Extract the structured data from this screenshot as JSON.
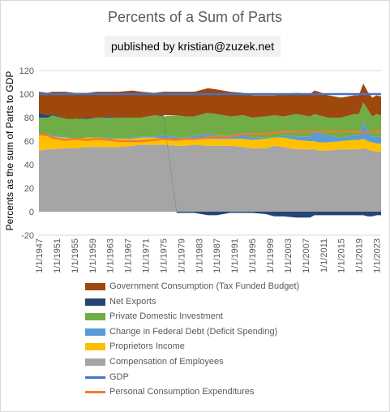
{
  "chart_data": {
    "type": "area",
    "title": "Percents of a Sum of Parts",
    "publisher": "published by kristian@zuzek.net",
    "ylabel": "Percents as the sum of Parts to GDP",
    "xlabel": "",
    "ylim": [
      -20,
      120
    ],
    "yticks": [
      -20,
      0,
      20,
      40,
      60,
      80,
      100,
      120
    ],
    "x_start_year": 1947,
    "x_end_year": 2024,
    "xtick_labels": [
      "1/1/1947",
      "1/1/1951",
      "1/1/1955",
      "1/1/1959",
      "1/1/1963",
      "1/1/1967",
      "1/1/1971",
      "1/1/1975",
      "1/1/1979",
      "1/1/1983",
      "1/1/1987",
      "1/1/1991",
      "1/1/1995",
      "1/1/1999",
      "1/1/2003",
      "1/1/2007",
      "1/1/2011",
      "1/1/2015",
      "1/1/2019",
      "1/1/2023"
    ],
    "xtick_years": [
      1947,
      1951,
      1955,
      1959,
      1963,
      1967,
      1971,
      1975,
      1979,
      1983,
      1987,
      1991,
      1995,
      1999,
      2003,
      2007,
      2011,
      2015,
      2019,
      2023
    ],
    "grid": true,
    "legend_position": "bottom",
    "sample_years": [
      1947,
      1949,
      1950,
      1953,
      1955,
      1958,
      1960,
      1963,
      1965,
      1968,
      1970,
      1973,
      1975,
      1978,
      1980,
      1982,
      1985,
      1987,
      1990,
      1993,
      1995,
      1998,
      2000,
      2002,
      2005,
      2008,
      2009,
      2010,
      2012,
      2015,
      2018,
      2019,
      2020,
      2021,
      2022,
      2023,
      2024
    ],
    "series": [
      {
        "name": "Compensation of Employees",
        "kind": "stack",
        "color": "#a5a5a5",
        "values": [
          52,
          53,
          53,
          54,
          54,
          55,
          55,
          55,
          55,
          56,
          57,
          57,
          57,
          56,
          56,
          57,
          56,
          56,
          56,
          55,
          54,
          54,
          56,
          55,
          53,
          53,
          53,
          52,
          52,
          53,
          53,
          53,
          54,
          53,
          52,
          51,
          51
        ]
      },
      {
        "name": "Proprietors Income",
        "kind": "stack",
        "color": "#ffc000",
        "values": [
          13,
          13,
          11,
          9,
          8,
          8,
          8,
          7,
          7,
          6,
          6,
          6,
          5,
          5,
          5,
          4,
          6,
          6,
          6,
          7,
          7,
          8,
          7,
          8,
          8,
          7,
          7,
          7,
          7,
          7,
          8,
          8,
          8,
          7,
          7,
          7,
          7
        ]
      },
      {
        "name": "Change in Federal Debt (Deficit Spending)",
        "kind": "stack",
        "color": "#5b9bd5",
        "values": [
          0,
          0,
          1,
          1,
          0,
          0,
          0,
          1,
          0,
          1,
          1,
          1,
          3,
          2,
          2,
          4,
          4,
          3,
          3,
          4,
          2,
          1,
          0,
          2,
          3,
          4,
          9,
          8,
          6,
          3,
          4,
          4,
          15,
          9,
          5,
          6,
          6
        ]
      },
      {
        "name": "Private Domestic Investment",
        "kind": "stack",
        "color": "#70ad47",
        "values": [
          15,
          14,
          17,
          15,
          17,
          16,
          17,
          17,
          18,
          17,
          16,
          18,
          16,
          19,
          18,
          16,
          18,
          18,
          16,
          16,
          17,
          18,
          19,
          16,
          19,
          17,
          14,
          15,
          15,
          17,
          18,
          18,
          16,
          18,
          17,
          19,
          18
        ]
      },
      {
        "name": "Net Exports",
        "kind": "stack",
        "color": "#264478",
        "values": [
          4,
          2,
          1,
          0,
          0,
          1,
          0,
          1,
          0,
          0,
          0,
          0,
          1,
          -1,
          -1,
          -1,
          -3,
          -3,
          -1,
          -1,
          -1,
          -2,
          -4,
          -4,
          -5,
          -5,
          -3,
          -3,
          -3,
          -3,
          -3,
          -3,
          -3,
          -4,
          -4,
          -3,
          -3
        ]
      },
      {
        "name": "Government Consumption (Tax Funded Budget)",
        "kind": "stack",
        "color": "#9e480e",
        "values": [
          18,
          19,
          19,
          23,
          22,
          21,
          22,
          21,
          22,
          23,
          22,
          19,
          20,
          20,
          21,
          21,
          21,
          21,
          21,
          19,
          19,
          18,
          17,
          19,
          18,
          19,
          20,
          20,
          19,
          17,
          16,
          16,
          16,
          15,
          16,
          16,
          16
        ]
      },
      {
        "name": "GDP",
        "kind": "line",
        "color": "#4472c4",
        "values": [
          100,
          100,
          100,
          100,
          100,
          100,
          100,
          100,
          100,
          100,
          100,
          100,
          100,
          100,
          100,
          100,
          100,
          100,
          100,
          100,
          100,
          100,
          100,
          100,
          100,
          100,
          100,
          100,
          100,
          100,
          100,
          100,
          100,
          100,
          100,
          100,
          100
        ]
      },
      {
        "name": "Personal Consumption Expenditures",
        "kind": "line",
        "color": "#ed7d31",
        "values": [
          66,
          65,
          63,
          61,
          62,
          61,
          62,
          61,
          60,
          60,
          60,
          61,
          62,
          61,
          62,
          62,
          63,
          64,
          64,
          66,
          66,
          66,
          67,
          68,
          68,
          68,
          68,
          68,
          68,
          68,
          68,
          68,
          67,
          68,
          68,
          68,
          68
        ]
      }
    ]
  }
}
